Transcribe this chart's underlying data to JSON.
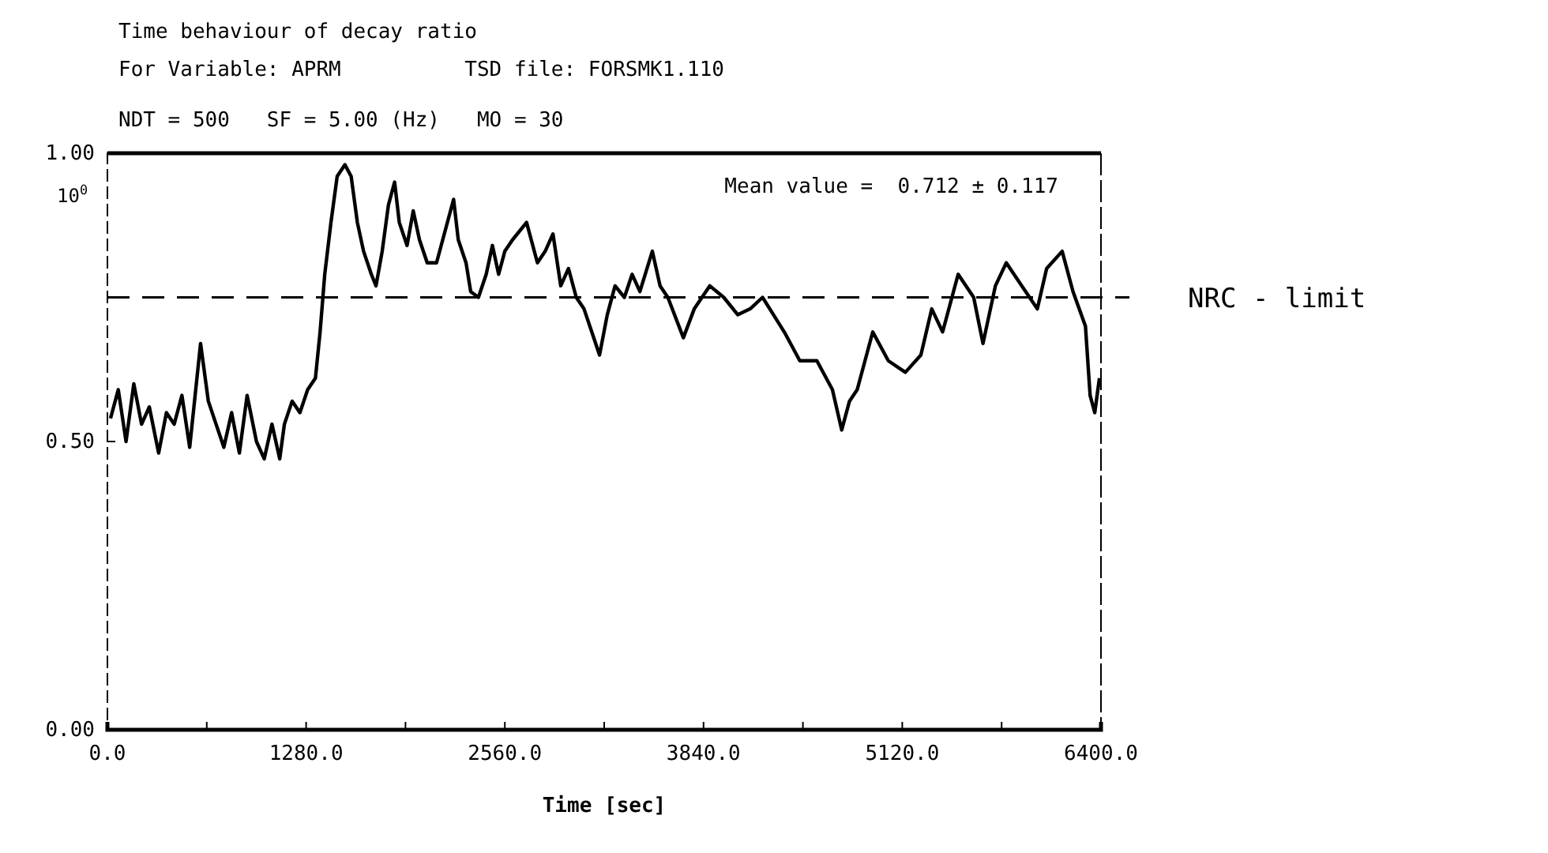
{
  "chart_data": {
    "type": "line",
    "title": "Time behaviour of decay ratio",
    "subtitle": "For Variable: APRM          TSD file: FORSMK1.110",
    "annotations": [
      "NDT = 500   SF = 5.00 (Hz)   MO = 30",
      "Mean value =  0.712 ± 0.117",
      "10$^{0}$"
    ],
    "xlabel": "Time [sec]",
    "x": [
      20,
      70,
      120,
      170,
      220,
      270,
      330,
      380,
      430,
      480,
      530,
      600,
      650,
      700,
      750,
      800,
      850,
      900,
      960,
      1010,
      1060,
      1110,
      1140,
      1190,
      1240,
      1290,
      1340,
      1370,
      1400,
      1440,
      1480,
      1530,
      1570,
      1610,
      1650,
      1700,
      1730,
      1770,
      1810,
      1850,
      1880,
      1930,
      1970,
      2010,
      2060,
      2120,
      2160,
      2230,
      2260,
      2310,
      2340,
      2390,
      2440,
      2480,
      2520,
      2560,
      2610,
      2700,
      2770,
      2820,
      2870,
      2920,
      2970,
      3020,
      3070,
      3120,
      3170,
      3220,
      3270,
      3330,
      3380,
      3430,
      3510,
      3560,
      3610,
      3710,
      3780,
      3880,
      3970,
      4060,
      4140,
      4220,
      4290,
      4360,
      4460,
      4570,
      4670,
      4730,
      4780,
      4830,
      4930,
      5030,
      5140,
      5240,
      5310,
      5380,
      5480,
      5580,
      5640,
      5720,
      5790,
      5890,
      5990,
      6050,
      6150,
      6220,
      6300,
      6330,
      6360,
      6390
    ],
    "series": [
      {
        "color": "#000000",
        "values": [
          0.54,
          0.59,
          0.5,
          0.6,
          0.53,
          0.56,
          0.48,
          0.55,
          0.53,
          0.58,
          0.49,
          0.67,
          0.57,
          0.53,
          0.49,
          0.55,
          0.48,
          0.58,
          0.5,
          0.47,
          0.53,
          0.47,
          0.53,
          0.57,
          0.55,
          0.59,
          0.61,
          0.69,
          0.79,
          0.88,
          0.96,
          0.98,
          0.96,
          0.88,
          0.83,
          0.79,
          0.77,
          0.83,
          0.91,
          0.95,
          0.88,
          0.84,
          0.9,
          0.85,
          0.81,
          0.81,
          0.85,
          0.92,
          0.85,
          0.81,
          0.76,
          0.75,
          0.79,
          0.84,
          0.79,
          0.83,
          0.85,
          0.88,
          0.81,
          0.83,
          0.86,
          0.77,
          0.8,
          0.75,
          0.73,
          0.69,
          0.65,
          0.72,
          0.77,
          0.75,
          0.79,
          0.76,
          0.83,
          0.77,
          0.75,
          0.68,
          0.73,
          0.77,
          0.75,
          0.72,
          0.73,
          0.75,
          0.72,
          0.69,
          0.64,
          0.64,
          0.59,
          0.52,
          0.57,
          0.59,
          0.69,
          0.64,
          0.62,
          0.65,
          0.73,
          0.69,
          0.79,
          0.75,
          0.67,
          0.77,
          0.81,
          0.77,
          0.73,
          0.8,
          0.83,
          0.76,
          0.7,
          0.58,
          0.55,
          0.61
        ]
      }
    ],
    "xlim": [
      0,
      6400
    ],
    "xticks": [
      {
        "value": 0,
        "label": "0.0"
      },
      {
        "value": 640,
        "label": null
      },
      {
        "value": 1280,
        "label": "1280.0"
      },
      {
        "value": 1920,
        "label": null
      },
      {
        "value": 2560,
        "label": "2560.0"
      },
      {
        "value": 3200,
        "label": null
      },
      {
        "value": 3840,
        "label": "3840.0"
      },
      {
        "value": 4480,
        "label": null
      },
      {
        "value": 5120,
        "label": "5120.0"
      },
      {
        "value": 5760,
        "label": null
      },
      {
        "value": 6400,
        "label": "6400.0"
      }
    ],
    "ylim": [
      0,
      1
    ],
    "yticks": [
      {
        "value": 0,
        "label": "0.00"
      },
      {
        "value": 0.5,
        "label": "0.50"
      },
      {
        "value": 1,
        "label": "1.00"
      }
    ],
    "ref_lines": [
      {
        "axis": "y",
        "value": 0.75,
        "label": "NRC - limit",
        "line_style": "dashed",
        "color": "#000000"
      }
    ],
    "line_style": "solid",
    "marker": "none"
  }
}
